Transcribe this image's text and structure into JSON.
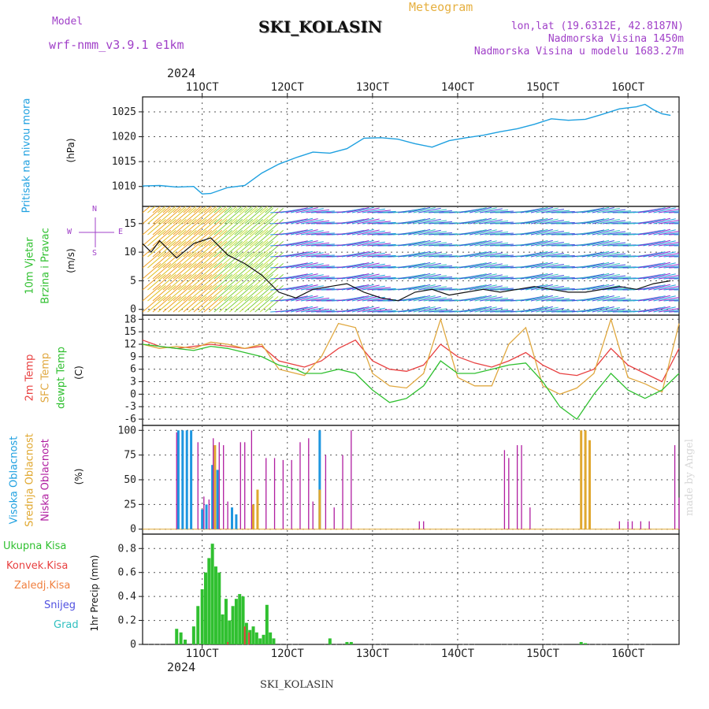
{
  "header": {
    "model_label": "Model",
    "model_name": "wrf-nmm_v3.9.1 e1km",
    "station": "SKI_KOLASIN",
    "meteogram_label": "Meteogram",
    "lonlat": "lon,lat (19.6312E, 42.8187N)",
    "elevation": "Nadmorska Visina 1450m",
    "model_elevation": "Nadmorska Visina u modelu 1683.27m",
    "year_top": "2024",
    "year_bottom": "2024",
    "footer_station": "SKI_KOLASIN",
    "credit": "made by Angel"
  },
  "colors": {
    "pressure": "#1ea0e0",
    "temp2m": "#e84040",
    "sfctemp": "#e0a840",
    "dewpt": "#30c030",
    "cloud_high": "#1e96e0",
    "cloud_mid": "#e0a830",
    "cloud_low": "#b01ea0",
    "precip_total": "#30c030",
    "precip_conv": "#e84040",
    "precip_ice": "#f08040",
    "precip_snow": "#5050e0",
    "precip_grad": "#30c0c0",
    "wind_label": "#30c030",
    "windrose": "#a040c8"
  },
  "time_axis": {
    "start_day": 10.3,
    "end_day": 16.6,
    "ticks": [
      "11OCT",
      "12OCT",
      "13OCT",
      "14OCT",
      "15OCT",
      "16OCT"
    ]
  },
  "panels": {
    "pressure": {
      "label": "Pritisak na nivou mora",
      "unit": "(hPa)"
    },
    "wind": {
      "label_1": "10m Vjetar",
      "label_2": "Brzina i Pravac",
      "unit": "(m/s)",
      "rose": "N",
      "rose_e": "E",
      "rose_w": "W",
      "rose_s": "S"
    },
    "temp": {
      "label_1": "2m Temp",
      "label_2": "SFC Temp",
      "label_3": "dewpt Temp",
      "unit": "(C)"
    },
    "cloud": {
      "label_1": "Visoka Oblacnost",
      "label_2": "Srednja Oblacnost",
      "label_3": "Niska Oblacnost",
      "unit": "(%)"
    },
    "precip": {
      "label_total": "Ukupna Kisa",
      "label_conv": "Konvek.Kisa",
      "label_ice": "Zaledj.Kisa",
      "label_snow": "Snijeg",
      "label_grad": "Grad",
      "unit": "1hr Precip (mm)"
    }
  },
  "chart_data": [
    {
      "type": "line",
      "name": "pressure",
      "ylim": [
        1006,
        1028
      ],
      "yticks": [
        "1010",
        "1015",
        "1020",
        "1025"
      ],
      "x": [
        10.3,
        10.5,
        10.7,
        10.9,
        11.0,
        11.1,
        11.3,
        11.5,
        11.7,
        11.9,
        12.1,
        12.3,
        12.5,
        12.7,
        12.9,
        13.1,
        13.3,
        13.5,
        13.7,
        13.9,
        14.1,
        14.3,
        14.5,
        14.7,
        14.9,
        15.1,
        15.3,
        15.5,
        15.7,
        15.9,
        16.1,
        16.2,
        16.3,
        16.4,
        16.5
      ],
      "values": [
        1010.1,
        1010.2,
        1009.9,
        1010.0,
        1008.5,
        1008.6,
        1009.8,
        1010.2,
        1012.7,
        1014.5,
        1015.8,
        1016.9,
        1016.7,
        1017.6,
        1019.7,
        1019.8,
        1019.5,
        1018.6,
        1017.9,
        1019.2,
        1019.8,
        1020.3,
        1021.0,
        1021.6,
        1022.5,
        1023.6,
        1023.3,
        1023.5,
        1024.5,
        1025.6,
        1026.0,
        1026.5,
        1025.4,
        1024.6,
        1024.3
      ]
    },
    {
      "type": "line",
      "name": "wind_speed",
      "ylim": [
        -1,
        18
      ],
      "yticks": [
        "0",
        "5",
        "10",
        "15"
      ],
      "x": [
        10.3,
        10.4,
        10.5,
        10.7,
        10.9,
        11.1,
        11.3,
        11.5,
        11.7,
        11.9,
        12.1,
        12.3,
        12.5,
        12.7,
        12.9,
        13.1,
        13.3,
        13.5,
        13.7,
        13.9,
        14.1,
        14.3,
        14.5,
        14.7,
        14.9,
        15.1,
        15.3,
        15.5,
        15.7,
        15.9,
        16.1,
        16.3,
        16.5
      ],
      "values": [
        11.5,
        10.0,
        12.0,
        9.0,
        11.5,
        12.5,
        9.5,
        8.0,
        6.0,
        3.0,
        2.0,
        3.5,
        4.0,
        4.5,
        3.0,
        2.0,
        1.5,
        3.0,
        3.5,
        2.5,
        3.0,
        3.5,
        3.0,
        3.5,
        4.0,
        3.5,
        3.0,
        3.0,
        3.5,
        4.0,
        3.5,
        4.5,
        5.0
      ]
    },
    {
      "type": "line",
      "name": "temperature",
      "ylim": [
        -7.5,
        19
      ],
      "yticks": [
        "-6",
        "-3",
        "0",
        "3",
        "6",
        "9",
        "12",
        "15",
        "18"
      ],
      "series": [
        {
          "name": "2m Temp",
          "color_key": "temp2m",
          "x": [
            10.3,
            10.5,
            10.7,
            10.9,
            11.1,
            11.3,
            11.5,
            11.7,
            11.9,
            12.1,
            12.2,
            12.4,
            12.6,
            12.8,
            13.0,
            13.2,
            13.4,
            13.6,
            13.8,
            14.0,
            14.2,
            14.4,
            14.6,
            14.8,
            15.0,
            15.2,
            15.4,
            15.6,
            15.8,
            16.0,
            16.2,
            16.4,
            16.6
          ],
          "values": [
            13,
            11.5,
            11,
            11.5,
            12,
            11.5,
            11,
            11.5,
            8,
            7,
            6.5,
            8,
            11,
            13,
            8,
            6,
            5.5,
            7,
            12,
            9,
            7.5,
            6.5,
            8,
            10,
            7,
            5,
            4.5,
            6,
            11,
            7,
            5,
            3,
            11
          ]
        },
        {
          "name": "SFC Temp",
          "color_key": "sfctemp",
          "x": [
            10.3,
            10.5,
            10.7,
            10.9,
            11.1,
            11.3,
            11.5,
            11.7,
            11.9,
            12.1,
            12.2,
            12.4,
            12.6,
            12.8,
            13.0,
            13.2,
            13.4,
            13.6,
            13.8,
            14.0,
            14.2,
            14.4,
            14.6,
            14.8,
            15.0,
            15.2,
            15.4,
            15.6,
            15.8,
            16.0,
            16.2,
            16.4,
            16.6
          ],
          "values": [
            12,
            11,
            11.5,
            11,
            12.5,
            12,
            11,
            12,
            6,
            5,
            4.5,
            9,
            17,
            16,
            5,
            2,
            1.5,
            5,
            18,
            4,
            2,
            2,
            12,
            16,
            2,
            0,
            1.5,
            5,
            18,
            4,
            2.5,
            0.5,
            17
          ]
        },
        {
          "name": "dewpt Temp",
          "color_key": "dewpt",
          "x": [
            10.3,
            10.5,
            10.7,
            10.9,
            11.1,
            11.3,
            11.5,
            11.7,
            11.9,
            12.1,
            12.2,
            12.4,
            12.6,
            12.8,
            13.0,
            13.2,
            13.4,
            13.6,
            13.8,
            14.0,
            14.2,
            14.4,
            14.6,
            14.8,
            15.0,
            15.2,
            15.4,
            15.6,
            15.8,
            16.0,
            16.2,
            16.4,
            16.6
          ],
          "values": [
            12,
            11.5,
            11,
            10.5,
            11.5,
            11,
            10,
            9,
            7,
            6,
            5,
            5,
            6,
            5,
            1,
            -2,
            -1,
            2,
            8,
            5,
            5,
            6,
            7,
            7.5,
            3,
            -3,
            -6,
            0,
            5,
            1,
            -1,
            1,
            5
          ]
        }
      ]
    },
    {
      "type": "bar",
      "name": "cloud_cover",
      "ylim": [
        -5,
        105
      ],
      "yticks": [
        "0",
        "25",
        "50",
        "75",
        "100"
      ],
      "series": [
        {
          "name": "Visoka Oblacnost",
          "color_key": "cloud_high",
          "x": [
            10.72,
            10.77,
            10.82,
            10.87,
            11.0,
            11.05,
            11.12,
            11.18,
            11.35,
            11.4,
            12.38
          ],
          "values": [
            100,
            100,
            100,
            100,
            20,
            25,
            65,
            60,
            22,
            15,
            100
          ]
        },
        {
          "name": "Srednja Oblacnost",
          "color_key": "cloud_mid",
          "x": [
            11.15,
            11.6,
            11.65,
            12.38,
            15.45,
            15.5,
            15.55
          ],
          "values": [
            85,
            25,
            40,
            40,
            100,
            100,
            90
          ]
        },
        {
          "name": "Niska Oblacnost",
          "color_key": "cloud_low",
          "x": [
            10.7,
            10.95,
            11.02,
            11.08,
            11.13,
            11.2,
            11.25,
            11.3,
            11.45,
            11.5,
            11.58,
            11.75,
            11.85,
            11.95,
            12.05,
            12.15,
            12.25,
            12.3,
            12.45,
            12.55,
            12.65,
            12.75,
            13.55,
            13.6,
            14.55,
            14.6,
            14.7,
            14.75,
            14.85,
            15.9,
            16.0,
            16.05,
            16.15,
            16.25,
            16.55,
            16.6
          ],
          "values": [
            98,
            88,
            33,
            30,
            92,
            88,
            85,
            28,
            88,
            88,
            100,
            72,
            72,
            70,
            70,
            88,
            92,
            28,
            75,
            22,
            75,
            100,
            8,
            8,
            80,
            72,
            85,
            85,
            22,
            8,
            8,
            8,
            8,
            8,
            85,
            32
          ]
        }
      ]
    },
    {
      "type": "bar",
      "name": "precip_1hr",
      "ylim": [
        0,
        0.92
      ],
      "yticks": [
        "0",
        "0.2",
        "0.4",
        "0.6",
        "0.8"
      ],
      "series": [
        {
          "name": "Ukupna Kisa",
          "color_key": "precip_total",
          "x": [
            10.7,
            10.75,
            10.8,
            10.9,
            10.95,
            11.0,
            11.04,
            11.08,
            11.12,
            11.16,
            11.2,
            11.24,
            11.28,
            11.32,
            11.36,
            11.4,
            11.44,
            11.48,
            11.52,
            11.56,
            11.6,
            11.64,
            11.68,
            11.72,
            11.76,
            11.8,
            11.84,
            12.5,
            12.7,
            12.75,
            15.45,
            15.5
          ],
          "values": [
            0.13,
            0.1,
            0.04,
            0.15,
            0.32,
            0.46,
            0.6,
            0.72,
            0.84,
            0.65,
            0.6,
            0.25,
            0.38,
            0.2,
            0.32,
            0.38,
            0.42,
            0.4,
            0.18,
            0.12,
            0.15,
            0.1,
            0.05,
            0.08,
            0.33,
            0.1,
            0.05,
            0.05,
            0.02,
            0.02,
            0.02,
            0.01
          ]
        },
        {
          "name": "Konvek.Kisa",
          "color_key": "precip_conv",
          "x": [
            11.3,
            11.5,
            11.55
          ],
          "values": [
            0.02,
            0.15,
            0.1
          ]
        }
      ]
    }
  ]
}
